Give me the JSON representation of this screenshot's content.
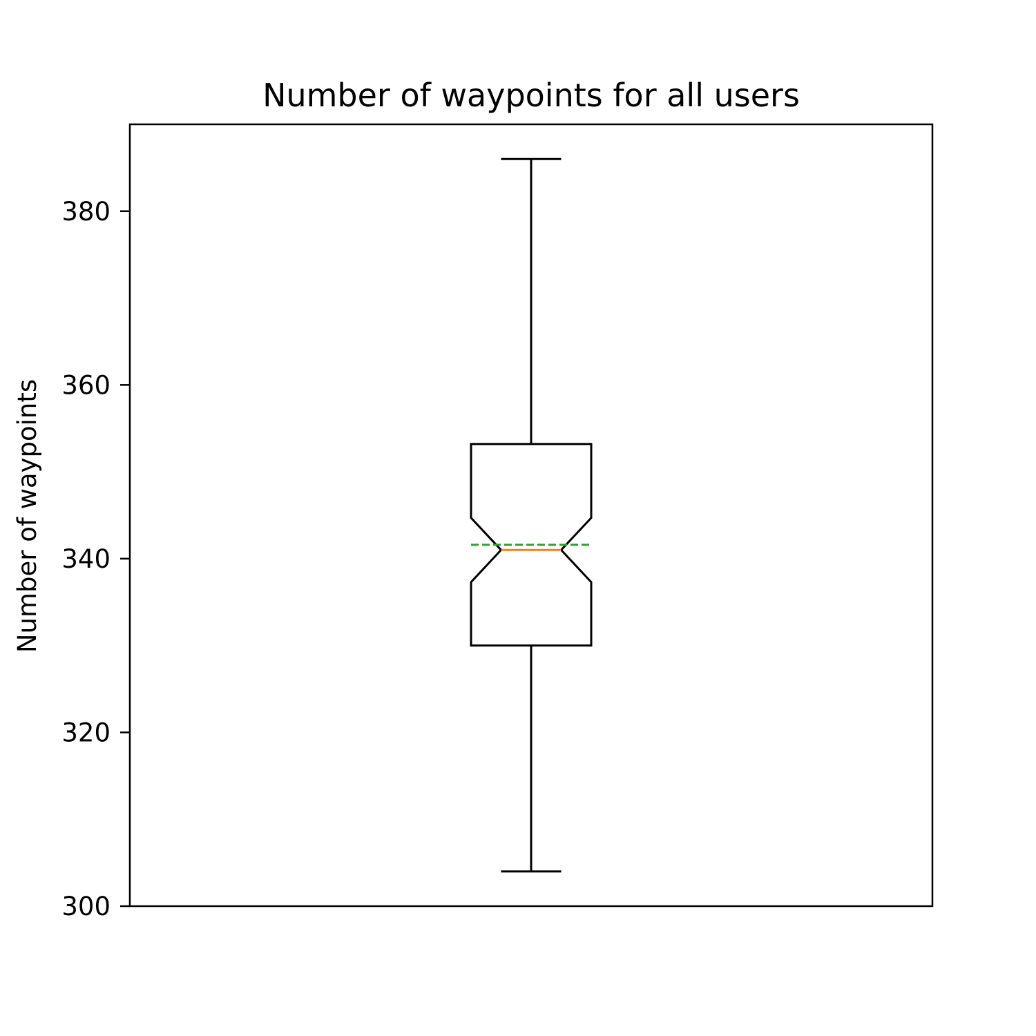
{
  "chart_data": {
    "type": "boxplot",
    "title": "Number of waypoints for all users",
    "xlabel": "",
    "ylabel": "Number of waypoints",
    "ylim": [
      300,
      390
    ],
    "yticks": [
      300,
      320,
      340,
      360,
      380
    ],
    "grid": false,
    "notched": true,
    "show_mean": true,
    "boxes": [
      {
        "whisker_low": 304,
        "q1": 330,
        "median": 341,
        "q3": 353.2,
        "whisker_high": 386,
        "notch_low": 337.3,
        "notch_high": 344.7,
        "mean": 341.6
      }
    ],
    "colors": {
      "box": "#000000",
      "median": "#ff7f0e",
      "mean": "#2ca02c"
    }
  }
}
